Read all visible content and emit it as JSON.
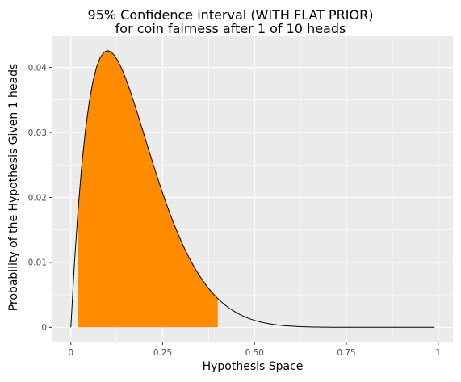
{
  "chart_data": {
    "type": "area",
    "title": "95% Confidence interval (WITH FLAT PRIOR)",
    "subtitle": "for coin fairness after 1 of 10 heads",
    "xlabel": "Hypothesis Space",
    "ylabel": "Probability of the Hypothesis Given 1 heads",
    "xlim": [
      -0.05,
      1.04
    ],
    "ylim": [
      -0.0022,
      0.0448
    ],
    "x_ticks": [
      0,
      0.25,
      0.5,
      0.75,
      1
    ],
    "x_tick_labels": [
      "0",
      "0.25",
      "0.50",
      "0.75",
      "1"
    ],
    "y_ticks": [
      0,
      0.01,
      0.02,
      0.03,
      0.04
    ],
    "y_tick_labels": [
      "0",
      "0.01",
      "0.02",
      "0.03",
      "0.04"
    ],
    "grid": true,
    "colors": {
      "panel": "#ebebeb",
      "grid": "#ffffff",
      "fill": "#ff8c00",
      "line": "#000000"
    },
    "series": [
      {
        "curve": "posterior density of a binomial with 1 head in 10 tosses under a flat prior, proportional to p(1-p)^9",
        "x_start": 0,
        "x_end": 0.99,
        "step": 0.01,
        "peak_x": 0.1,
        "peak_y": 0.0426,
        "points": [
          [
            0,
            0
          ],
          [
            0.05,
            0.0331
          ],
          [
            0.1,
            0.0426
          ],
          [
            0.2,
            0.0297
          ],
          [
            0.3,
            0.014
          ],
          [
            0.4,
            0.0044
          ],
          [
            0.5,
            0.0011
          ],
          [
            0.7,
            2e-05
          ],
          [
            0.99,
            0
          ]
        ]
      }
    ],
    "shaded_interval": {
      "label": "95% Confidence interval",
      "x_start": 0.02,
      "x_end": 0.4
    }
  }
}
